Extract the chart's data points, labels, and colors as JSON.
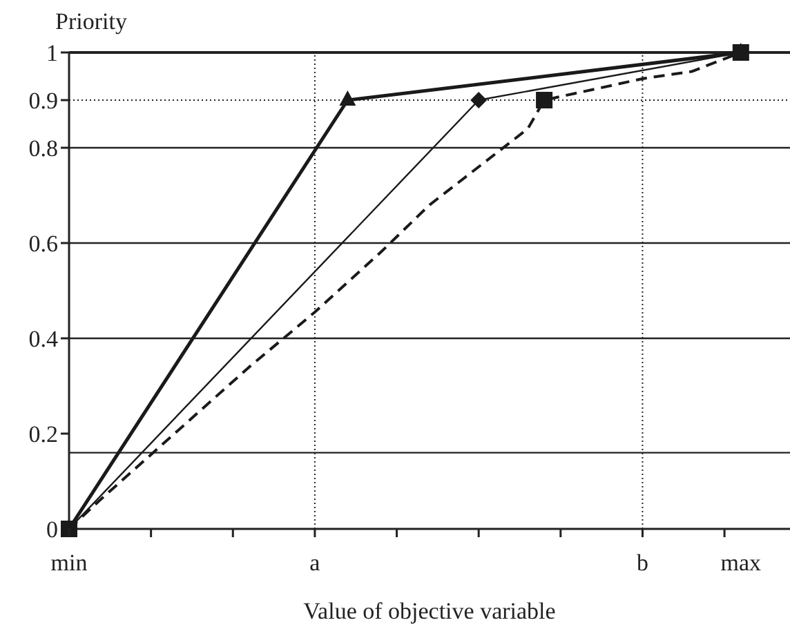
{
  "chart_data": {
    "type": "line",
    "ylabel": "Priority",
    "xlabel": "Value of objective variable",
    "categories": [
      "min",
      null,
      null,
      null,
      null,
      null,
      null,
      null,
      null,
      null,
      null,
      null,
      null,
      null,
      null,
      "a",
      null,
      null,
      null,
      null,
      null,
      null,
      null,
      null,
      null,
      null,
      null,
      null,
      null,
      null,
      null,
      null,
      null,
      null,
      null,
      "b",
      null,
      null,
      null,
      null,
      null,
      "max",
      null,
      null,
      null
    ],
    "ylim": [
      0,
      1
    ],
    "yticks": [
      0,
      0.2,
      0.4,
      0.6,
      0.8,
      0.9,
      1
    ],
    "ref_lines": [
      {
        "axis": "y",
        "value": 0.16,
        "line_style": "solid"
      },
      {
        "axis": "y",
        "value": 0.4,
        "line_style": "solid"
      },
      {
        "axis": "y",
        "value": 0.6,
        "line_style": "solid"
      },
      {
        "axis": "y",
        "value": 0.8,
        "line_style": "solid"
      },
      {
        "axis": "y",
        "value": 1,
        "line_style": "solid"
      },
      {
        "axis": "y",
        "value": 0.9,
        "line_style": "dotted"
      },
      {
        "axis": "x",
        "value": "a",
        "line_style": "dotted"
      },
      {
        "axis": "x",
        "value": "b",
        "line_style": "dotted"
      }
    ],
    "series": [
      {
        "color": "#1a1a1a",
        "line_style": "solid",
        "marker": "triangle",
        "values": [
          0,
          null,
          null,
          null,
          null,
          null,
          null,
          null,
          null,
          null,
          null,
          null,
          null,
          null,
          null,
          null,
          null,
          0.9,
          null,
          null,
          null,
          null,
          null,
          null,
          null,
          null,
          null,
          null,
          null,
          null,
          null,
          null,
          null,
          null,
          null,
          null,
          null,
          null,
          null,
          null,
          null,
          1,
          null,
          null,
          null
        ]
      },
      {
        "color": "#1a1a1a",
        "line_style": "solid",
        "marker": "diamond",
        "values": [
          0,
          null,
          null,
          null,
          null,
          null,
          null,
          null,
          null,
          null,
          null,
          null,
          null,
          null,
          null,
          null,
          null,
          null,
          null,
          null,
          null,
          null,
          null,
          null,
          null,
          0.9,
          null,
          null,
          null,
          null,
          null,
          null,
          null,
          null,
          null,
          null,
          null,
          null,
          null,
          null,
          null,
          1,
          null,
          null,
          null
        ]
      },
      {
        "color": "#1a1a1a",
        "line_style": "dashed",
        "marker": "none",
        "values": [
          0,
          null,
          0.064,
          null,
          null,
          null,
          null,
          null,
          null,
          null,
          null,
          0.34,
          null,
          null,
          null,
          0.455,
          null,
          null,
          null,
          0.58,
          null,
          null,
          0.68,
          null,
          null,
          null,
          null,
          null,
          0.84,
          0.9,
          null,
          null,
          null,
          null,
          null,
          0.945,
          null,
          null,
          0.96,
          null,
          null,
          1,
          null,
          null,
          null
        ]
      },
      {
        "type": "scatter",
        "color": "#1a1a1a",
        "marker": "square",
        "values": [
          0,
          null,
          null,
          null,
          null,
          null,
          null,
          null,
          null,
          null,
          null,
          null,
          null,
          null,
          null,
          null,
          null,
          null,
          null,
          null,
          null,
          null,
          null,
          null,
          null,
          null,
          null,
          null,
          null,
          0.9,
          null,
          null,
          null,
          null,
          null,
          null,
          null,
          null,
          null,
          null,
          null,
          1,
          null,
          null,
          null
        ]
      }
    ]
  }
}
